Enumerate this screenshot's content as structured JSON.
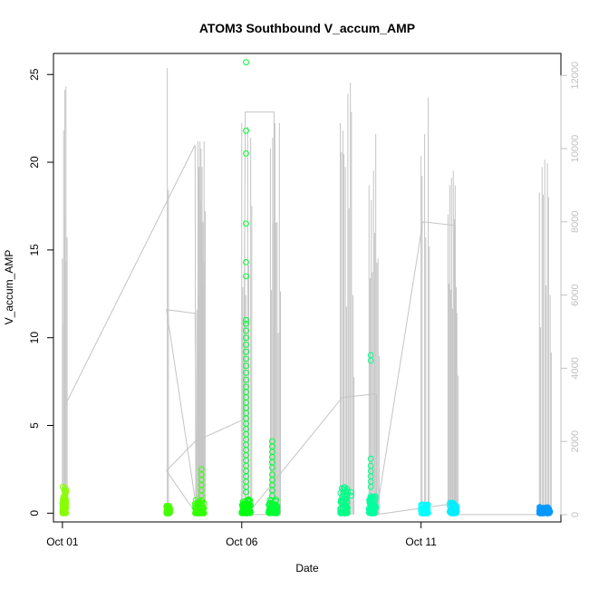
{
  "chart_data": {
    "type": "scatter",
    "title": "ATOM3 Southbound V_accum_AMP",
    "xlabel": "Date",
    "ylabel": "V_accum_AMP",
    "x_unit": "day of October (fractional)",
    "xlim": [
      0.75,
      14.9
    ],
    "ylim": [
      -0.5,
      26.2
    ],
    "x_ticks": [
      {
        "value": 1,
        "label": "Oct 01"
      },
      {
        "value": 6,
        "label": "Oct 06"
      },
      {
        "value": 11,
        "label": "Oct 11"
      }
    ],
    "y_ticks": [
      0,
      5,
      10,
      15,
      20,
      25
    ],
    "y2_ticks": [
      0,
      2000,
      4000,
      6000,
      8000,
      10000,
      12000
    ],
    "y2lim": [
      -200,
      12600
    ],
    "grid": false,
    "legend": "none",
    "colors": {
      "line": "#c4c4c4",
      "axis": "#000000",
      "y2_axis": "#c0c0c0"
    },
    "point_clusters": [
      {
        "x_start": 1.0,
        "x_end": 1.1,
        "y_max": 1.6,
        "color": "#88ff00"
      },
      {
        "x_start": 3.9,
        "x_end": 4.0,
        "y_max": 0.45,
        "color": "#44ff00"
      },
      {
        "x_start": 4.7,
        "x_end": 4.95,
        "y_max": 0.8,
        "color": "#33ff00"
      },
      {
        "x_start": 6.0,
        "x_end": 6.25,
        "y_max": 0.8,
        "color": "#00ff11"
      },
      {
        "x_start": 6.75,
        "x_end": 7.0,
        "y_max": 0.8,
        "color": "#00ff33"
      },
      {
        "x_start": 8.75,
        "x_end": 8.95,
        "y_max": 1.5,
        "color": "#00ff88"
      },
      {
        "x_start": 9.55,
        "x_end": 9.75,
        "y_max": 1.0,
        "color": "#00ffa0"
      },
      {
        "x_start": 11.0,
        "x_end": 11.2,
        "y_max": 0.5,
        "color": "#00ffff"
      },
      {
        "x_start": 11.8,
        "x_end": 12.0,
        "y_max": 0.6,
        "color": "#00eeff"
      },
      {
        "x_start": 14.3,
        "x_end": 14.6,
        "y_max": 0.35,
        "color": "#0099ff"
      }
    ],
    "point_columns": [
      {
        "x": 6.12,
        "color": "#00ff33",
        "values": [
          25.7,
          21.8,
          20.5,
          16.5,
          14.3,
          13.5,
          11.0,
          10.8,
          10.4,
          10.0,
          9.6,
          9.2,
          8.8,
          8.4,
          8.0,
          7.6,
          7.2,
          6.9,
          6.6,
          6.3,
          6.0,
          5.7,
          5.4,
          5.1,
          4.8,
          4.5,
          4.2,
          3.9,
          3.6,
          3.3,
          3.0,
          2.7,
          2.4,
          2.1,
          1.8,
          1.5,
          1.2
        ]
      },
      {
        "x": 4.88,
        "color": "#33ff00",
        "values": [
          2.5,
          2.2,
          1.9,
          1.6,
          1.3,
          1.0
        ]
      },
      {
        "x": 6.85,
        "color": "#00ff33",
        "values": [
          4.1,
          3.8,
          3.5,
          3.2,
          2.9,
          2.6,
          2.2,
          1.9,
          1.6,
          1.3,
          1.0
        ]
      },
      {
        "x": 9.6,
        "color": "#00ff88",
        "values": [
          9.0,
          8.7,
          3.1,
          2.7,
          2.4,
          2.1,
          1.8,
          1.5
        ]
      },
      {
        "x": 9.05,
        "color": "#00ff88",
        "values": [
          1.2,
          1.0
        ]
      }
    ],
    "bursts": [
      {
        "x_start": 1.0,
        "x_end": 1.1,
        "peaks": [
          7.0,
          10.5,
          11.6,
          11.7
        ]
      },
      {
        "x_start": 3.9,
        "x_end": 3.95,
        "peaks": [
          12.2
        ]
      },
      {
        "x_start": 4.75,
        "x_end": 4.95,
        "peaks": [
          5.6,
          10.2,
          9.5,
          10.2,
          10.0,
          9.5,
          8.0,
          10.2
        ]
      },
      {
        "x_start": 6.0,
        "x_end": 6.25,
        "peaks": [
          10.7,
          8.0,
          10.6,
          10.3
        ]
      },
      {
        "x_start": 6.8,
        "x_end": 7.05,
        "peaks": [
          10.0,
          10.3,
          10.7,
          8.0,
          10.7
        ]
      },
      {
        "x_start": 8.75,
        "x_end": 9.1,
        "peaks": [
          10.7,
          10.5,
          9.5,
          11.5,
          11.8,
          6.0
        ]
      },
      {
        "x_start": 9.55,
        "x_end": 9.8,
        "peaks": [
          9.0,
          8.6,
          9.4,
          10.4,
          7.0
        ]
      },
      {
        "x_start": 11.0,
        "x_end": 11.2,
        "peaks": [
          9.8,
          10.4,
          11.4
        ]
      },
      {
        "x_start": 11.75,
        "x_end": 12.0,
        "peaks": [
          8.2,
          9.0,
          9.2,
          9.4,
          9.0,
          5.5
        ]
      },
      {
        "x_start": 14.3,
        "x_end": 14.6,
        "peaks": [
          8.8,
          9.5,
          9.7,
          9.6,
          6.0
        ]
      }
    ],
    "line_path": [
      [
        1.08,
        3000
      ],
      [
        4.7,
        10100
      ],
      [
        4.72,
        0
      ],
      [
        4.75,
        100
      ],
      [
        3.9,
        5600
      ],
      [
        4.7,
        5500
      ],
      [
        4.75,
        0
      ],
      [
        3.9,
        1200
      ],
      [
        4.7,
        2000
      ],
      [
        6.05,
        2600
      ],
      [
        6.1,
        11000
      ],
      [
        6.9,
        11000
      ],
      [
        6.9,
        0
      ],
      [
        6.1,
        0
      ],
      [
        6.15,
        0
      ],
      [
        8.8,
        3200
      ],
      [
        9.75,
        3300
      ],
      [
        9.75,
        0
      ],
      [
        11.9,
        300
      ],
      [
        9.75,
        0
      ],
      [
        11.05,
        8000
      ],
      [
        11.95,
        7900
      ],
      [
        11.95,
        0
      ],
      [
        14.3,
        0
      ]
    ]
  }
}
